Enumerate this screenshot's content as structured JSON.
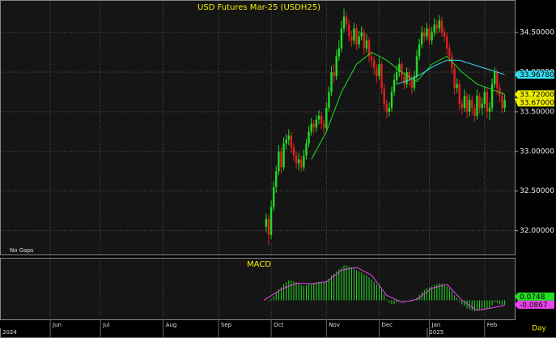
{
  "chart_data": [
    {
      "type": "candlestick",
      "title": "USD  Futures  Mar-25  (USDH25)",
      "note": "No Gaps",
      "xlim": [
        0,
        205
      ],
      "ylim": [
        31.7,
        34.91
      ],
      "yticks": [
        {
          "value": 32.0,
          "label": "32.00000"
        },
        {
          "value": 32.5,
          "label": "32.50000"
        },
        {
          "value": 33.0,
          "label": "33.00000"
        },
        {
          "value": 33.5,
          "label": "33.50000"
        },
        {
          "value": 34.0,
          "label": "34.00000"
        },
        {
          "value": 34.5,
          "label": "34.50000"
        }
      ],
      "grid": true,
      "x": [
        106,
        107,
        108,
        109,
        110,
        111,
        112,
        113,
        114,
        115,
        116,
        117,
        118,
        119,
        120,
        121,
        122,
        123,
        124,
        125,
        126,
        127,
        128,
        129,
        130,
        131,
        132,
        133,
        134,
        135,
        136,
        137,
        138,
        139,
        140,
        141,
        142,
        143,
        144,
        145,
        146,
        147,
        148,
        149,
        150,
        151,
        152,
        153,
        154,
        155,
        156,
        157,
        158,
        159,
        160,
        161,
        162,
        163,
        164,
        165,
        166,
        167,
        168,
        169,
        170,
        171,
        172,
        173,
        174,
        175,
        176,
        177,
        178,
        179,
        180,
        181,
        182,
        183,
        184,
        185,
        186,
        187,
        188,
        189,
        190,
        191,
        192,
        193,
        194,
        195,
        196,
        197,
        198,
        199,
        200,
        201
      ],
      "candles": {
        "up_color": "#22dd22",
        "down_color": "#e02020",
        "ohlc": [
          [
            32.05,
            32.22,
            31.98,
            32.15
          ],
          [
            32.15,
            32.2,
            31.82,
            31.95
          ],
          [
            31.95,
            32.38,
            31.9,
            32.3
          ],
          [
            32.3,
            32.62,
            32.25,
            32.55
          ],
          [
            32.55,
            32.82,
            32.48,
            32.75
          ],
          [
            32.75,
            33.08,
            32.7,
            33.0
          ],
          [
            33.0,
            33.05,
            32.72,
            32.8
          ],
          [
            32.8,
            33.18,
            32.76,
            33.1
          ],
          [
            33.1,
            33.22,
            33.02,
            33.15
          ],
          [
            33.15,
            33.28,
            33.08,
            33.2
          ],
          [
            33.2,
            33.25,
            32.98,
            33.05
          ],
          [
            33.05,
            33.1,
            32.88,
            32.95
          ],
          [
            32.95,
            33.0,
            32.78,
            32.85
          ],
          [
            32.85,
            32.98,
            32.76,
            32.9
          ],
          [
            32.9,
            32.95,
            32.74,
            32.8
          ],
          [
            32.8,
            33.02,
            32.76,
            32.95
          ],
          [
            32.95,
            33.16,
            32.9,
            33.1
          ],
          [
            33.1,
            33.32,
            33.05,
            33.25
          ],
          [
            33.25,
            33.42,
            33.2,
            33.35
          ],
          [
            33.35,
            33.4,
            33.22,
            33.3
          ],
          [
            33.3,
            33.46,
            33.25,
            33.4
          ],
          [
            33.4,
            33.52,
            33.34,
            33.45
          ],
          [
            33.45,
            33.5,
            33.28,
            33.35
          ],
          [
            33.35,
            33.4,
            33.22,
            33.3
          ],
          [
            33.3,
            33.62,
            33.26,
            33.55
          ],
          [
            33.55,
            33.82,
            33.5,
            33.75
          ],
          [
            33.75,
            34.08,
            33.7,
            34.0
          ],
          [
            34.0,
            34.1,
            33.86,
            33.95
          ],
          [
            33.95,
            34.28,
            33.9,
            34.2
          ],
          [
            34.2,
            34.4,
            34.14,
            34.3
          ],
          [
            34.3,
            34.65,
            34.25,
            34.55
          ],
          [
            34.55,
            34.8,
            34.5,
            34.7
          ],
          [
            34.7,
            34.76,
            34.52,
            34.6
          ],
          [
            34.6,
            34.66,
            34.38,
            34.45
          ],
          [
            34.45,
            34.52,
            34.32,
            34.4
          ],
          [
            34.4,
            34.62,
            34.35,
            34.55
          ],
          [
            34.55,
            34.6,
            34.28,
            34.35
          ],
          [
            34.35,
            34.52,
            34.3,
            34.45
          ],
          [
            34.45,
            34.58,
            34.4,
            34.5
          ],
          [
            34.5,
            34.55,
            34.22,
            34.3
          ],
          [
            34.3,
            34.48,
            34.25,
            34.4
          ],
          [
            34.4,
            34.44,
            34.12,
            34.2
          ],
          [
            34.2,
            34.26,
            34.06,
            34.15
          ],
          [
            34.15,
            34.2,
            33.96,
            34.05
          ],
          [
            34.05,
            34.1,
            33.86,
            33.95
          ],
          [
            33.95,
            34.18,
            33.9,
            34.1
          ],
          [
            34.1,
            34.14,
            33.72,
            33.8
          ],
          [
            33.8,
            33.86,
            33.52,
            33.6
          ],
          [
            33.6,
            33.66,
            33.42,
            33.5
          ],
          [
            33.5,
            33.62,
            33.44,
            33.55
          ],
          [
            33.55,
            33.82,
            33.5,
            33.75
          ],
          [
            33.75,
            33.98,
            33.7,
            33.9
          ],
          [
            33.9,
            34.08,
            33.84,
            34.0
          ],
          [
            34.0,
            34.18,
            33.94,
            34.1
          ],
          [
            34.1,
            34.14,
            33.88,
            33.95
          ],
          [
            33.95,
            34.0,
            33.78,
            33.85
          ],
          [
            33.85,
            34.06,
            33.8,
            34.0
          ],
          [
            34.0,
            34.05,
            33.82,
            33.9
          ],
          [
            33.9,
            33.96,
            33.72,
            33.8
          ],
          [
            33.8,
            34.02,
            33.76,
            33.95
          ],
          [
            33.95,
            34.28,
            33.9,
            34.2
          ],
          [
            34.2,
            34.42,
            34.15,
            34.35
          ],
          [
            34.35,
            34.58,
            34.3,
            34.5
          ],
          [
            34.5,
            34.56,
            34.38,
            34.45
          ],
          [
            34.45,
            34.62,
            34.4,
            34.55
          ],
          [
            34.55,
            34.6,
            34.34,
            34.4
          ],
          [
            34.4,
            34.57,
            34.35,
            34.5
          ],
          [
            34.5,
            34.68,
            34.45,
            34.6
          ],
          [
            34.6,
            34.66,
            34.48,
            34.55
          ],
          [
            34.55,
            34.72,
            34.5,
            34.65
          ],
          [
            34.65,
            34.7,
            34.44,
            34.5
          ],
          [
            34.5,
            34.56,
            34.38,
            34.45
          ],
          [
            34.45,
            34.5,
            34.22,
            34.3
          ],
          [
            34.3,
            34.36,
            34.12,
            34.2
          ],
          [
            34.2,
            34.25,
            33.98,
            34.05
          ],
          [
            34.05,
            34.1,
            33.72,
            33.8
          ],
          [
            33.8,
            33.92,
            33.74,
            33.85
          ],
          [
            33.85,
            33.9,
            33.52,
            33.6
          ],
          [
            33.6,
            33.66,
            33.46,
            33.55
          ],
          [
            33.55,
            33.78,
            33.5,
            33.7
          ],
          [
            33.7,
            33.74,
            33.42,
            33.5
          ],
          [
            33.5,
            33.72,
            33.44,
            33.65
          ],
          [
            33.65,
            33.7,
            33.46,
            33.55
          ],
          [
            33.55,
            33.6,
            33.38,
            33.45
          ],
          [
            33.45,
            33.78,
            33.4,
            33.7
          ],
          [
            33.7,
            33.74,
            33.48,
            33.55
          ],
          [
            33.55,
            33.68,
            33.46,
            33.6
          ],
          [
            33.6,
            33.82,
            33.55,
            33.75
          ],
          [
            33.75,
            33.8,
            33.42,
            33.5
          ],
          [
            33.5,
            33.62,
            33.4,
            33.55
          ],
          [
            33.55,
            33.92,
            33.5,
            33.85
          ],
          [
            33.85,
            34.06,
            33.8,
            34.0
          ],
          [
            34.0,
            34.04,
            33.72,
            33.8
          ],
          [
            33.8,
            33.86,
            33.62,
            33.7
          ],
          [
            33.7,
            33.76,
            33.48,
            33.55
          ],
          [
            33.55,
            33.72,
            33.5,
            33.65
          ]
        ]
      },
      "lines": [
        {
          "color": "#22dd22",
          "x": [
            124,
            130,
            136,
            142,
            148,
            154,
            160,
            166,
            172,
            178,
            184,
            190,
            196,
            201
          ],
          "values": [
            32.9,
            33.25,
            33.75,
            34.1,
            34.25,
            34.15,
            34.0,
            33.88,
            34.1,
            34.2,
            34.0,
            33.85,
            33.78,
            33.72
          ]
        },
        {
          "color": "#33ddee",
          "x": [
            158,
            163,
            168,
            173,
            178,
            183,
            188,
            193,
            198,
            201
          ],
          "values": [
            33.85,
            33.9,
            33.98,
            34.08,
            34.15,
            34.15,
            34.1,
            34.05,
            34.0,
            33.97
          ]
        }
      ],
      "markers": [
        {
          "value": 33.9678,
          "label": "33.96780",
          "color": "#33ddee"
        },
        {
          "value": 33.72,
          "label": "33.72000",
          "color": "#f0f000"
        },
        {
          "value": 33.67,
          "label": "33.67000",
          "color": "#f0f000"
        }
      ]
    },
    {
      "type": "macd",
      "title": "MACD",
      "period_label": "Day",
      "xlim": [
        0,
        205
      ],
      "ylim": [
        -0.38,
        0.85
      ],
      "xticks": [
        {
          "value": 20,
          "label": "Jun"
        },
        {
          "value": 40,
          "label": "Jul"
        },
        {
          "value": 65,
          "label": "Aug"
        },
        {
          "value": 87,
          "label": "Sep"
        },
        {
          "value": 108,
          "label": "Oct"
        },
        {
          "value": 130,
          "label": "Nov"
        },
        {
          "value": 151,
          "label": "Dec"
        },
        {
          "value": 171,
          "label": "Jan"
        },
        {
          "value": 193,
          "label": "Feb"
        }
      ],
      "year_ticks": [
        {
          "value": 0,
          "label": "2024"
        },
        {
          "value": 170,
          "label": "2025"
        }
      ],
      "x": [
        106,
        107,
        108,
        109,
        110,
        111,
        112,
        113,
        114,
        115,
        116,
        117,
        118,
        119,
        120,
        121,
        122,
        123,
        124,
        125,
        126,
        127,
        128,
        129,
        130,
        131,
        132,
        133,
        134,
        135,
        136,
        137,
        138,
        139,
        140,
        141,
        142,
        143,
        144,
        145,
        146,
        147,
        148,
        149,
        150,
        151,
        152,
        153,
        154,
        155,
        156,
        157,
        158,
        159,
        160,
        161,
        162,
        163,
        164,
        165,
        166,
        167,
        168,
        169,
        170,
        171,
        172,
        173,
        174,
        175,
        176,
        177,
        178,
        179,
        180,
        181,
        182,
        183,
        184,
        185,
        186,
        187,
        188,
        189,
        190,
        191,
        192,
        193,
        194,
        195,
        196,
        197,
        198,
        199,
        200,
        201
      ],
      "histogram": {
        "color": "#22dd22",
        "values": [
          0.0,
          -0.02,
          0.02,
          0.08,
          0.15,
          0.22,
          0.26,
          0.32,
          0.36,
          0.4,
          0.4,
          0.38,
          0.36,
          0.33,
          0.3,
          0.29,
          0.3,
          0.32,
          0.34,
          0.35,
          0.36,
          0.37,
          0.36,
          0.35,
          0.38,
          0.43,
          0.5,
          0.53,
          0.58,
          0.62,
          0.66,
          0.7,
          0.7,
          0.68,
          0.66,
          0.64,
          0.6,
          0.58,
          0.56,
          0.52,
          0.5,
          0.46,
          0.42,
          0.37,
          0.32,
          0.3,
          0.22,
          0.12,
          0.02,
          -0.05,
          -0.08,
          -0.07,
          -0.04,
          -0.01,
          -0.01,
          -0.02,
          0.0,
          0.0,
          -0.02,
          0.0,
          0.05,
          0.11,
          0.17,
          0.21,
          0.25,
          0.26,
          0.28,
          0.3,
          0.32,
          0.34,
          0.33,
          0.31,
          0.28,
          0.24,
          0.18,
          0.1,
          0.05,
          -0.03,
          -0.08,
          -0.11,
          -0.16,
          -0.18,
          -0.2,
          -0.22,
          -0.2,
          -0.19,
          -0.18,
          -0.16,
          -0.17,
          -0.16,
          -0.1,
          -0.04,
          -0.05,
          -0.08,
          -0.1,
          -0.09
        ]
      },
      "line": {
        "color": "#ee44ee",
        "x": [
          105,
          112,
          118,
          124,
          130,
          136,
          142,
          148,
          154,
          160,
          166,
          172,
          178,
          184,
          190,
          196,
          201
        ],
        "values": [
          0.0,
          0.22,
          0.34,
          0.33,
          0.37,
          0.6,
          0.66,
          0.5,
          0.1,
          -0.04,
          0.02,
          0.24,
          0.32,
          0.0,
          -0.2,
          -0.15,
          -0.1
        ]
      },
      "markers": [
        {
          "value": 0.0748,
          "color": "#22dd22"
        },
        {
          "value": -0.0867,
          "color": "#ee44ee"
        }
      ]
    }
  ]
}
